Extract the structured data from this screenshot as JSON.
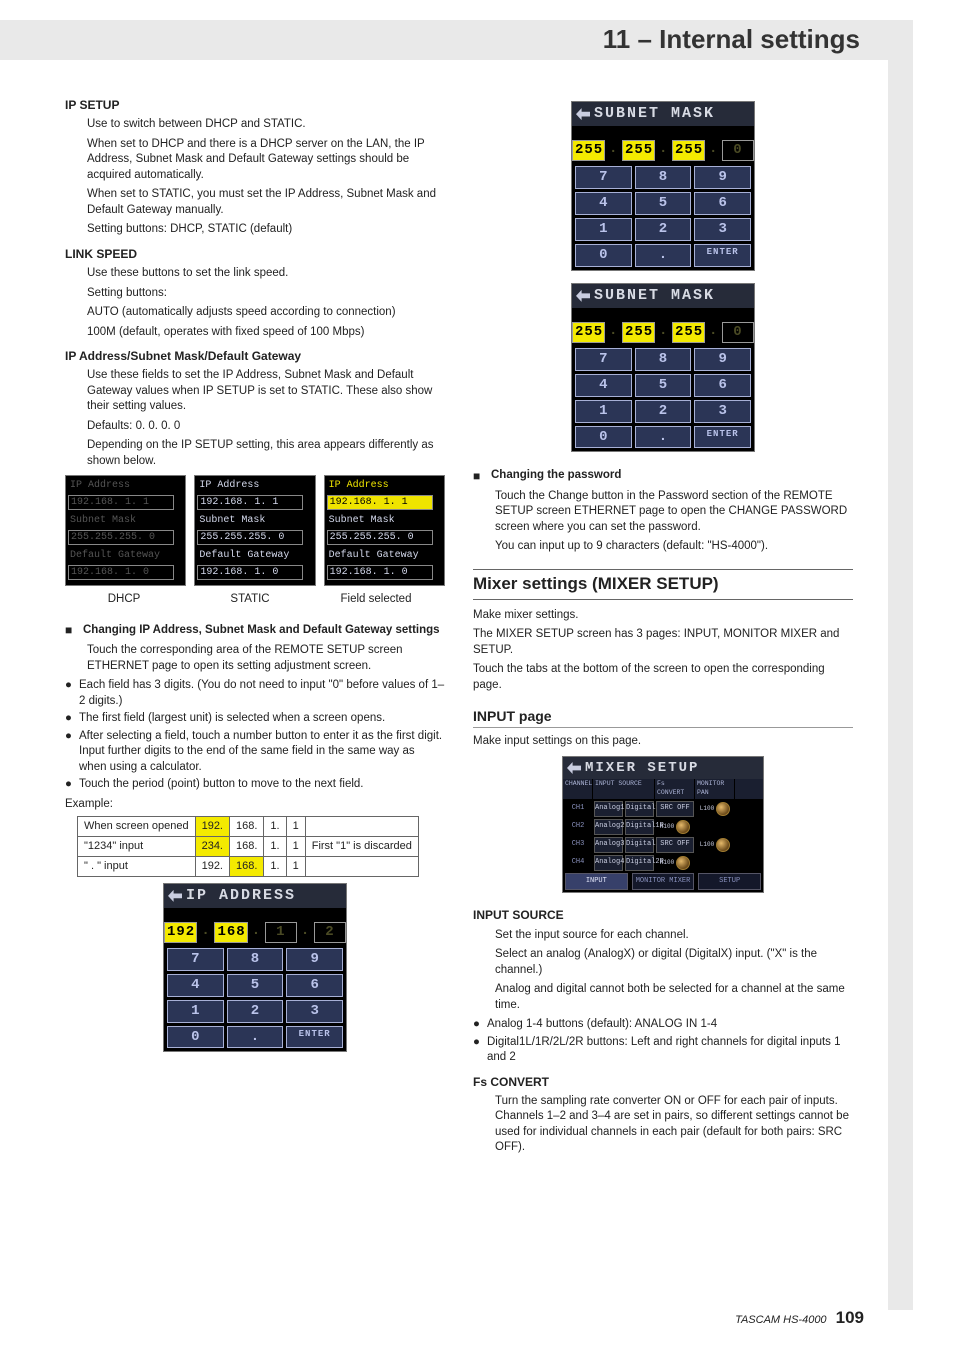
{
  "header": {
    "title": "11 – Internal settings"
  },
  "footer": {
    "brand": "TASCAM HS-4000",
    "page": "109"
  },
  "left": {
    "ip_setup": {
      "heading": "IP SETUP",
      "p1": "Use to switch between DHCP and STATIC.",
      "p2": "When set to DHCP and there is a DHCP server on the LAN, the IP Address, Subnet Mask and Default Gateway settings should be acquired automatically.",
      "p3": "When set to STATIC, you must set the IP Address, Subnet Mask and Default Gateway manually.",
      "p4": "Setting buttons: DHCP, STATIC (default)"
    },
    "link_speed": {
      "heading": "LINK SPEED",
      "p1": "Use these buttons to set the link speed.",
      "p2": "Setting buttons:",
      "p3": "AUTO (automatically adjusts speed according to connection)",
      "p4": "100M (default, operates with fixed speed of 100 Mbps)"
    },
    "ip_fields": {
      "heading": "IP Address/Subnet Mask/Default Gateway",
      "p1": "Use these fields to set the IP Address, Subnet Mask and Default Gateway values when IP SETUP is set to STATIC. These also show their setting values.",
      "p2": "Defaults: 0. 0. 0. 0",
      "p3": "Depending on the IP SETUP setting, this area appears differently as shown below."
    },
    "ip_illus": {
      "labels": {
        "ip": "IP Address",
        "sm": "Subnet Mask",
        "gw": "Default Gateway"
      },
      "dhcp": {
        "ip": "192.168.  1.  1",
        "sm": "255.255.255.  0",
        "gw": "192.168.  1.  0"
      },
      "static": {
        "ip": "192.168.  1.  1",
        "sm": "255.255.255.  0",
        "gw": "192.168.  1.  0"
      },
      "sel": {
        "ip": "192.168.  1.  1",
        "sm": "255.255.255.  0",
        "gw": "192.168.  1.  0"
      },
      "captions": {
        "a": "DHCP",
        "b": "STATIC",
        "c": "Field selected"
      }
    },
    "changing_ip": {
      "heading": "Changing IP Address, Subnet Mask and Default Gateway settings",
      "p1": "Touch the corresponding area of the REMOTE SETUP screen ETHERNET page to open its setting adjustment screen.",
      "b1": "Each field has 3 digits. (You do not need to input \"0\" before values of 1–2 digits.)",
      "b2": "The first field (largest unit) is selected when a screen opens.",
      "b3": "After selecting a field, touch a number button to enter it as the first digit. Input further digits to the end of the same field in the same way as when using a calculator.",
      "b4": " Touch the period (point) button to move to the next field.",
      "example_label": "Example:"
    },
    "example_table": {
      "r1": {
        "a": "When screen opened",
        "b": "192.",
        "c": "168.",
        "d": "1.",
        "e": "1",
        "f": ""
      },
      "r2": {
        "a": "\"1234\" input",
        "b": "234.",
        "c": "168.",
        "d": "1.",
        "e": "1",
        "f": "First \"1\" is discarded"
      },
      "r3": {
        "a": "\" . \" input",
        "b": "192.",
        "c": "168.",
        "d": "1.",
        "e": "1",
        "f": ""
      }
    },
    "ip_keypad": {
      "title": "IP ADDRESS",
      "segs": [
        "192",
        "168",
        "  1",
        "  2"
      ],
      "seg_on": [
        true,
        true,
        false,
        false
      ],
      "buttons": [
        "7",
        "8",
        "9",
        "4",
        "5",
        "6",
        "1",
        "2",
        "3",
        "0",
        ".",
        "ENTER"
      ]
    }
  },
  "right": {
    "subnet_keypad_a": {
      "title": "SUBNET MASK",
      "segs": [
        "255",
        "255",
        "255",
        "  0"
      ],
      "seg_on": [
        true,
        true,
        true,
        false
      ]
    },
    "subnet_keypad_b": {
      "title": "SUBNET MASK",
      "segs": [
        "255",
        "255",
        "255",
        "  0"
      ],
      "seg_on": [
        true,
        true,
        true,
        false
      ]
    },
    "keypad_buttons": [
      "7",
      "8",
      "9",
      "4",
      "5",
      "6",
      "1",
      "2",
      "3",
      "0",
      ".",
      "ENTER"
    ],
    "changing_pw": {
      "heading": "Changing the password",
      "p1": "Touch the Change button in the Password section of the REMOTE SETUP screen ETHERNET page to open the CHANGE PASSWORD screen where you can set the password.",
      "p2": "You can input up to 9 characters (default: \"HS-4000\")."
    },
    "mixer_section": {
      "title": "Mixer settings (MIXER SETUP)",
      "p1": "Make mixer settings.",
      "p2": "The MIXER SETUP screen has 3 pages: INPUT, MONITOR MIXER and SETUP.",
      "p3": "Touch the tabs at the bottom of the screen to open the corresponding page."
    },
    "input_page": {
      "title": "INPUT page",
      "p1": "Make input settings on this page."
    },
    "mixer_shot": {
      "title": "MIXER SETUP",
      "hdr": [
        "CHANNEL",
        "INPUT SOURCE",
        "Fs CONVERT",
        "MONITOR PAN"
      ],
      "rows": [
        {
          "ch": "CH1",
          "a": "Analog1",
          "d": "Digital1L",
          "src": "SRC OFF",
          "pan": "L100"
        },
        {
          "ch": "CH2",
          "a": "Analog2",
          "d": "Digital1R",
          "src": "",
          "pan": "R100"
        },
        {
          "ch": "CH3",
          "a": "Analog3",
          "d": "Digital2L",
          "src": "SRC OFF",
          "pan": "L100"
        },
        {
          "ch": "CH4",
          "a": "Analog4",
          "d": "Digital2R",
          "src": "",
          "pan": "R100"
        }
      ],
      "tabs": [
        "INPUT",
        "MONITOR MIXER",
        "SETUP"
      ]
    },
    "input_source": {
      "heading": "INPUT SOURCE",
      "p1": "Set the input source for each channel.",
      "p2": "Select an analog (AnalogX) or digital (DigitalX) input. (\"X\" is the channel.)",
      "p3": "Analog and digital cannot both be selected for a channel at the same time.",
      "b1": "Analog 1-4 buttons (default): ANALOG IN 1-4",
      "b2": "Digital1L/1R/2L/2R buttons: Left and right channels for digital inputs 1 and 2"
    },
    "fs_convert": {
      "heading": "Fs CONVERT",
      "p1": "Turn the sampling rate converter ON or OFF for each pair of inputs. Channels 1–2 and 3–4 are set in pairs, so different settings cannot be used for individual channels in each pair (default for both pairs: SRC OFF)."
    }
  }
}
